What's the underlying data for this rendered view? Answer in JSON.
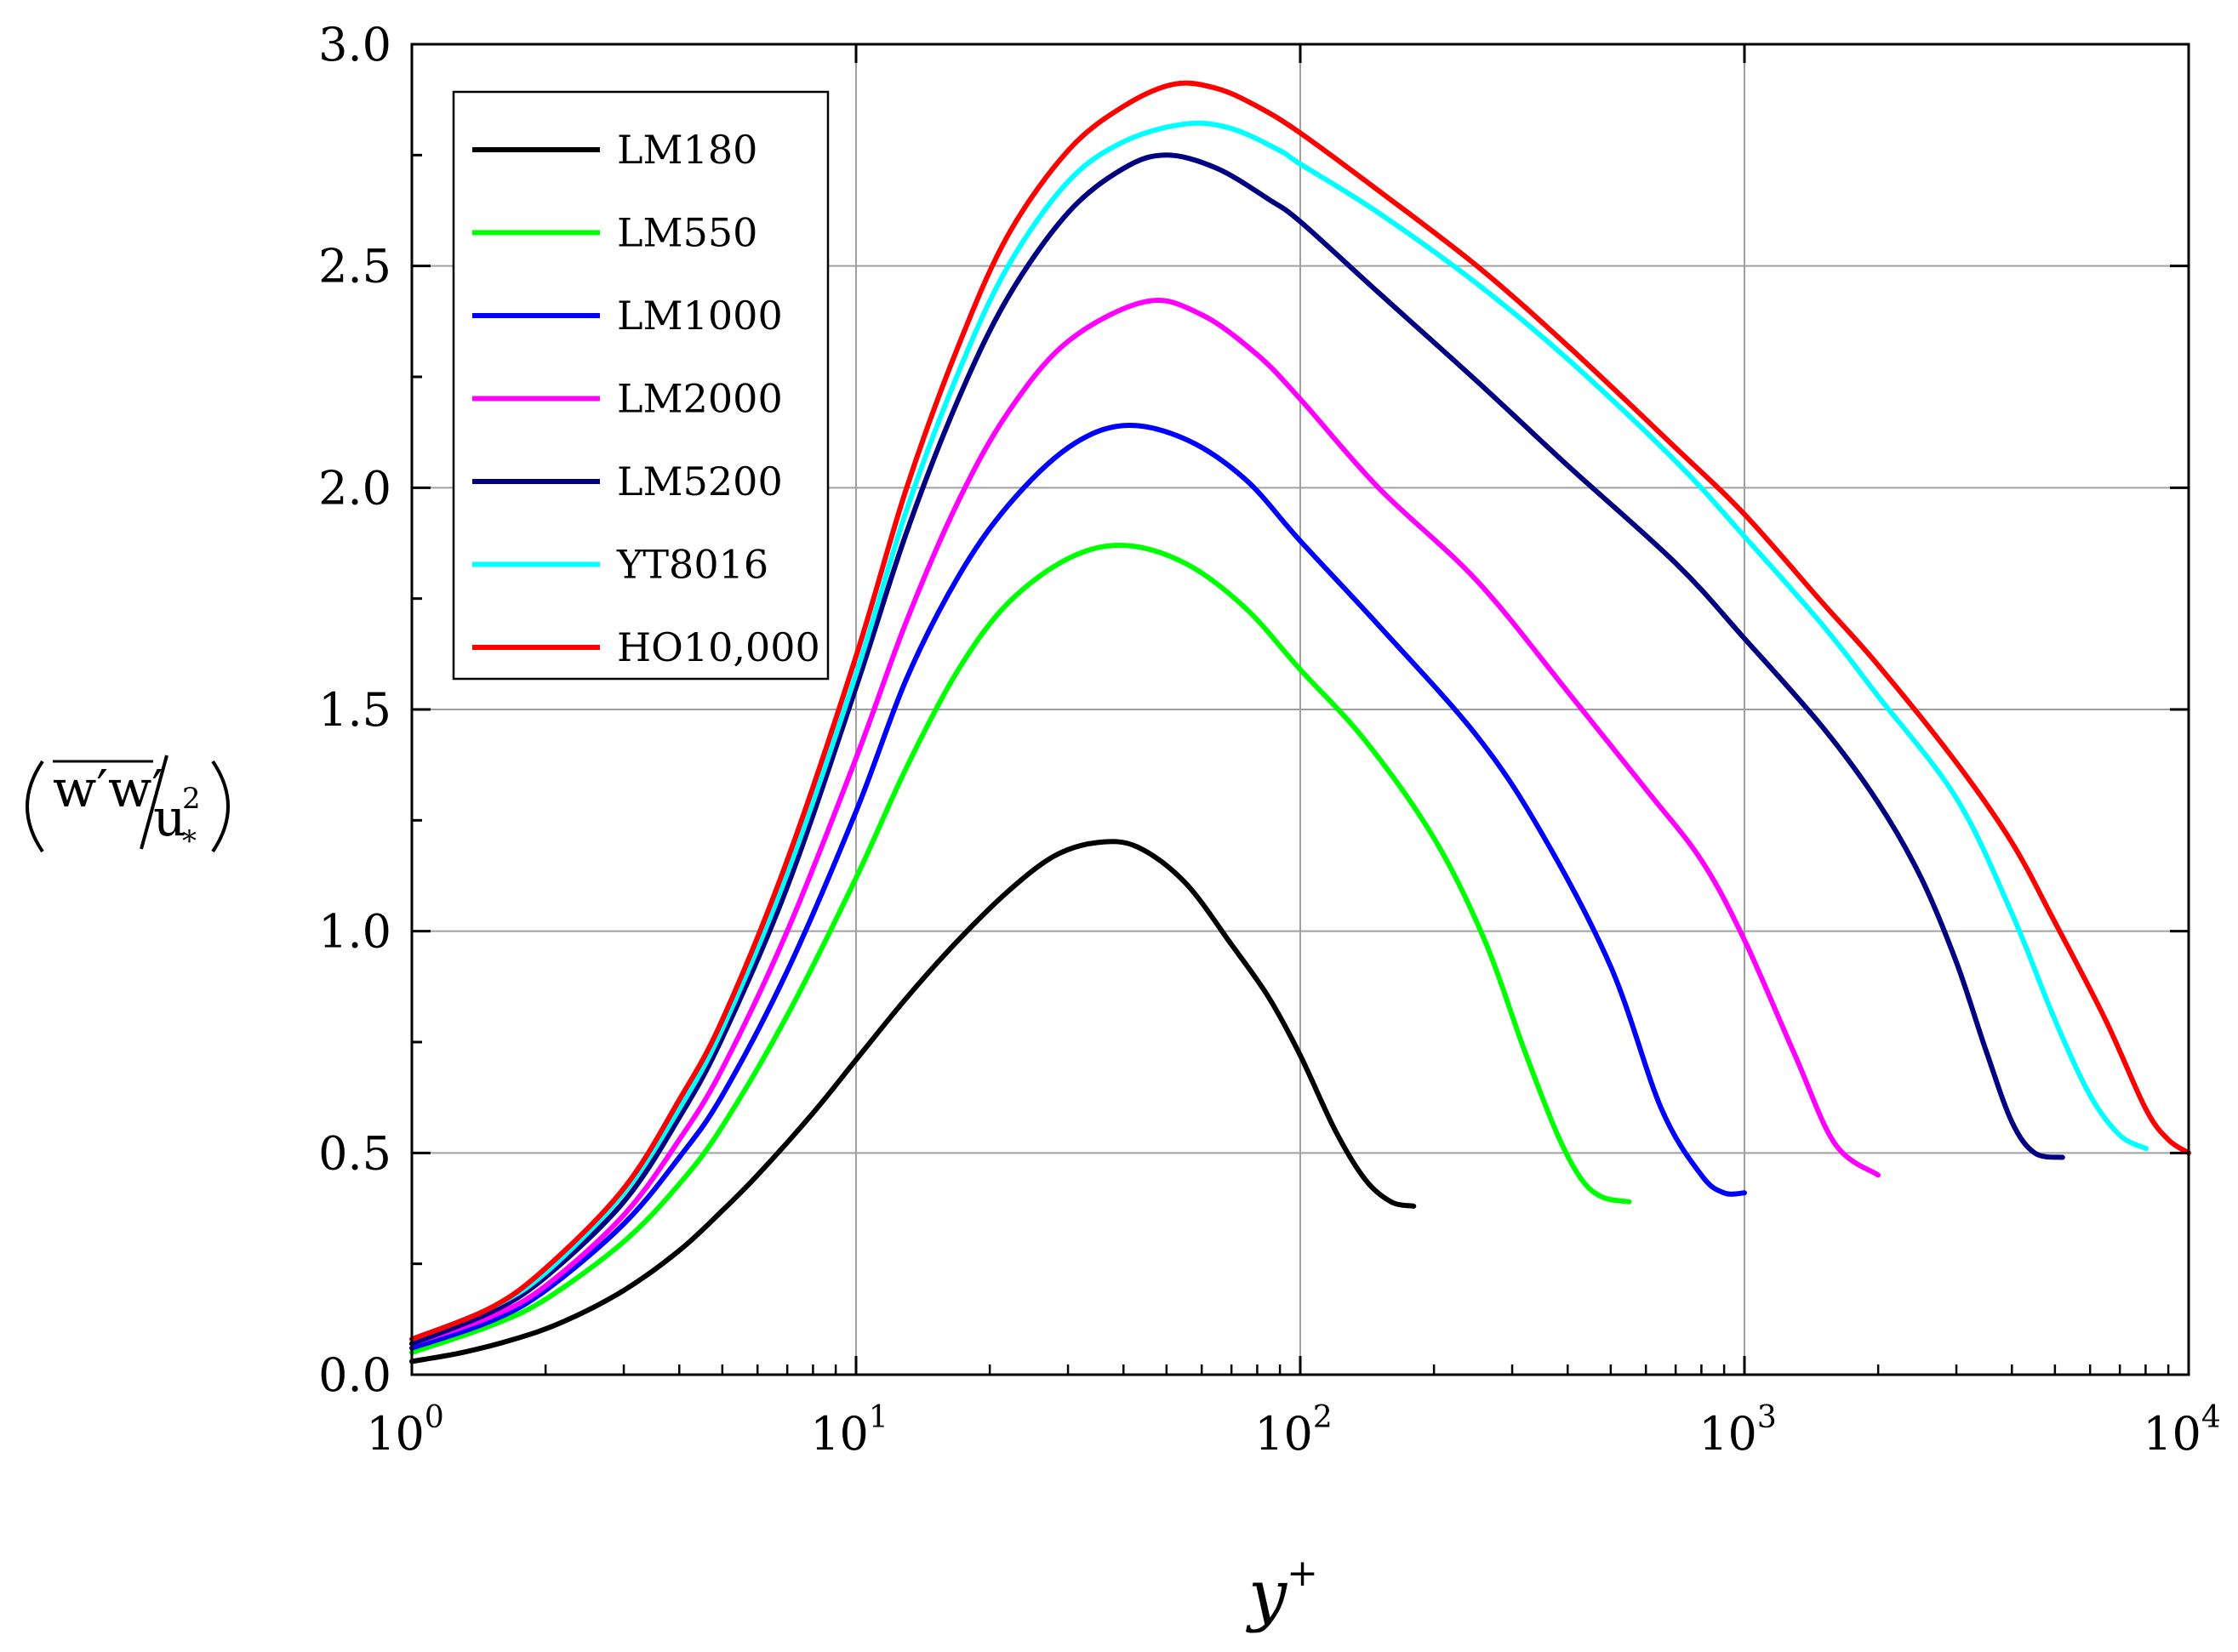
{
  "chart_data": {
    "type": "line",
    "title": "",
    "xlabel": {
      "base": "y",
      "sup": "+"
    },
    "ylabel": {
      "numerator": "w′w′",
      "denominator": "u",
      "den_sup": "2",
      "den_sub": "*"
    },
    "x_scale": "log",
    "xlim": [
      1,
      10000
    ],
    "ylim": [
      0.0,
      3.0
    ],
    "grid": true,
    "legend_position": "top-left",
    "x_ticks": [
      {
        "value": 1,
        "base": "10",
        "exp": "0"
      },
      {
        "value": 10,
        "base": "10",
        "exp": "1"
      },
      {
        "value": 100,
        "base": "10",
        "exp": "2"
      },
      {
        "value": 1000,
        "base": "10",
        "exp": "3"
      },
      {
        "value": 10000,
        "base": "10",
        "exp": "4"
      }
    ],
    "y_ticks": [
      {
        "value": 0.0,
        "label": "0.0"
      },
      {
        "value": 0.5,
        "label": "0.5"
      },
      {
        "value": 1.0,
        "label": "1.0"
      },
      {
        "value": 1.5,
        "label": "1.5"
      },
      {
        "value": 2.0,
        "label": "2.0"
      },
      {
        "value": 2.5,
        "label": "2.5"
      },
      {
        "value": 3.0,
        "label": "3.0"
      }
    ],
    "series": [
      {
        "name": "LM180",
        "color": "#000000",
        "x": [
          1,
          1.3,
          1.7,
          2.2,
          3,
          4,
          5,
          6,
          8,
          10,
          13,
          17,
          22,
          28,
          35,
          43,
          55,
          70,
          85,
          100,
          120,
          140,
          160,
          180
        ],
        "y": [
          0.03,
          0.05,
          0.08,
          0.12,
          0.19,
          0.28,
          0.37,
          0.45,
          0.59,
          0.71,
          0.85,
          0.98,
          1.09,
          1.17,
          1.2,
          1.19,
          1.11,
          0.97,
          0.85,
          0.72,
          0.55,
          0.44,
          0.39,
          0.38
        ]
      },
      {
        "name": "LM550",
        "color": "#00ff00",
        "x": [
          1,
          1.5,
          2,
          3,
          4,
          5,
          7,
          10,
          13,
          17,
          22,
          30,
          40,
          55,
          75,
          100,
          140,
          200,
          260,
          320,
          380,
          430,
          480,
          550
        ],
        "y": [
          0.05,
          0.11,
          0.17,
          0.3,
          0.43,
          0.56,
          0.81,
          1.12,
          1.37,
          1.59,
          1.74,
          1.84,
          1.87,
          1.83,
          1.73,
          1.59,
          1.43,
          1.21,
          0.98,
          0.73,
          0.54,
          0.44,
          0.4,
          0.39
        ]
      },
      {
        "name": "LM1000",
        "color": "#0000ff",
        "x": [
          1,
          1.5,
          2,
          3,
          4,
          5,
          7,
          10,
          13,
          17,
          22,
          30,
          40,
          55,
          75,
          100,
          150,
          250,
          350,
          500,
          650,
          800,
          900,
          1000
        ],
        "y": [
          0.06,
          0.12,
          0.19,
          0.34,
          0.49,
          0.63,
          0.91,
          1.27,
          1.57,
          1.8,
          1.96,
          2.09,
          2.14,
          2.11,
          2.02,
          1.88,
          1.69,
          1.44,
          1.22,
          0.92,
          0.6,
          0.45,
          0.41,
          0.41
        ]
      },
      {
        "name": "LM2000",
        "color": "#ff00ff",
        "x": [
          1,
          1.5,
          2,
          3,
          4,
          5,
          7,
          10,
          13,
          17,
          22,
          30,
          45,
          60,
          80,
          100,
          150,
          250,
          400,
          600,
          800,
          1000,
          1300,
          1600,
          2000
        ],
        "y": [
          0.07,
          0.13,
          0.2,
          0.36,
          0.53,
          0.69,
          1.0,
          1.39,
          1.7,
          1.97,
          2.17,
          2.33,
          2.42,
          2.39,
          2.3,
          2.2,
          2.0,
          1.79,
          1.54,
          1.32,
          1.16,
          0.98,
          0.72,
          0.52,
          0.45
        ]
      },
      {
        "name": "LM5200",
        "color": "#000080",
        "x": [
          1,
          1.5,
          2,
          3,
          4,
          5,
          7,
          10,
          13,
          17,
          22,
          30,
          40,
          50,
          65,
          85,
          100,
          150,
          250,
          400,
          700,
          1000,
          1500,
          2000,
          2500,
          3000,
          3500,
          4000,
          4500,
          5200
        ],
        "y": [
          0.07,
          0.14,
          0.22,
          0.39,
          0.58,
          0.76,
          1.1,
          1.55,
          1.9,
          2.2,
          2.43,
          2.62,
          2.72,
          2.75,
          2.72,
          2.65,
          2.6,
          2.44,
          2.24,
          2.05,
          1.83,
          1.66,
          1.46,
          1.29,
          1.12,
          0.93,
          0.73,
          0.57,
          0.5,
          0.49
        ]
      },
      {
        "name": "YT8016",
        "color": "#00ffff",
        "x": [
          1,
          1.5,
          2,
          3,
          4,
          5,
          7,
          10,
          13,
          17,
          22,
          30,
          40,
          55,
          70,
          90,
          100,
          150,
          250,
          400,
          700,
          1000,
          1500,
          2000,
          3000,
          4000,
          5000,
          6000,
          7000,
          8016
        ],
        "y": [
          0.08,
          0.15,
          0.23,
          0.41,
          0.6,
          0.78,
          1.13,
          1.58,
          1.95,
          2.26,
          2.5,
          2.69,
          2.78,
          2.82,
          2.81,
          2.76,
          2.73,
          2.62,
          2.46,
          2.29,
          2.06,
          1.89,
          1.69,
          1.53,
          1.3,
          1.04,
          0.8,
          0.63,
          0.54,
          0.51
        ]
      },
      {
        "name": "HO10,000",
        "color": "#ff0000",
        "x": [
          1,
          1.5,
          2,
          3,
          4,
          5,
          7,
          10,
          13,
          17,
          22,
          30,
          40,
          52,
          65,
          80,
          100,
          150,
          250,
          400,
          700,
          1000,
          1500,
          2000,
          3000,
          4000,
          5000,
          6500,
          8000,
          9000,
          10000
        ],
        "y": [
          0.08,
          0.15,
          0.24,
          0.42,
          0.62,
          0.8,
          1.16,
          1.62,
          2.0,
          2.32,
          2.57,
          2.76,
          2.86,
          2.91,
          2.9,
          2.86,
          2.8,
          2.67,
          2.5,
          2.32,
          2.09,
          1.94,
          1.74,
          1.6,
          1.38,
          1.2,
          1.02,
          0.8,
          0.6,
          0.53,
          0.5
        ]
      }
    ]
  }
}
